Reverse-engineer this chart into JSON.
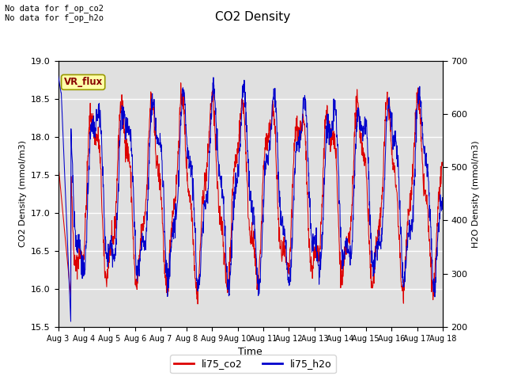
{
  "title": "CO2 Density",
  "xlabel": "Time",
  "ylabel_left": "CO2 Density (mmol/m3)",
  "ylabel_right": "H2O Density (mmol/m3)",
  "ylim_left": [
    15.5,
    19.0
  ],
  "ylim_right": [
    200,
    700
  ],
  "annotation_text": "No data for f_op_co2\nNo data for f_op_h2o",
  "vr_flux_label": "VR_flux",
  "legend_labels": [
    "li75_co2",
    "li75_h2o"
  ],
  "co2_color": "#dd0000",
  "h2o_color": "#0000cc",
  "background_color": "#ffffff",
  "plot_bg_color": "#e0e0e0",
  "grid_color": "#ffffff",
  "vr_flux_bg": "#ffffaa",
  "vr_flux_fg": "#880000",
  "n_points": 1500
}
